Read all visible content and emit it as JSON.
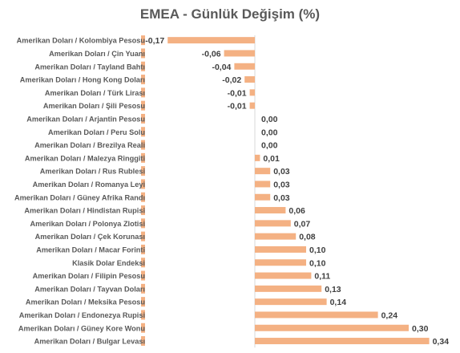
{
  "chart_data": {
    "type": "bar",
    "orientation": "horizontal",
    "title": "EMEA - Günlük Değişim (%)",
    "xlabel": "",
    "ylabel": "",
    "grid": false,
    "legend": "none",
    "xlim": [
      -0.17,
      0.34
    ],
    "bar_color": "#F4B183",
    "category_label_background": "#F4B183",
    "text_color": "#595959",
    "categories": [
      "Amerikan Doları / Kolombiya Pesosu",
      "Amerikan Doları / Çin Yuanı",
      "Amerikan Doları / Tayland Bahtı",
      "Amerikan Doları / Hong Kong Doları",
      "Amerikan Doları / Türk Lirası",
      "Amerikan Doları / Şili Pesosu",
      "Amerikan Doları / Arjantin Pesosu",
      "Amerikan Doları / Peru Solu",
      "Amerikan Doları / Brezilya Reali",
      "Amerikan Doları / Malezya Ringgiti",
      "Amerikan Doları / Rus Rublesi",
      "Amerikan Doları / Romanya Leyi",
      "Amerikan Doları / Güney Afrika Randı",
      "Amerikan Doları / Hindistan Rupisi",
      "Amerikan Doları / Polonya Zlotisi",
      "Amerikan Doları / Çek Korunası",
      "Amerikan Doları / Macar Forinti",
      "Klasik Dolar Endeksi",
      "Amerikan Doları / Filipin Pesosu",
      "Amerikan Doları / Tayvan Doları",
      "Amerikan Doları / Meksika Pesosu",
      "Amerikan Doları / Endonezya Rupisi",
      "Amerikan Doları / Güney Kore Wonu",
      "Amerikan Doları / Bulgar Levası"
    ],
    "values": [
      -0.17,
      -0.06,
      -0.04,
      -0.02,
      -0.01,
      -0.01,
      0.0,
      0.0,
      0.0,
      0.01,
      0.03,
      0.03,
      0.03,
      0.06,
      0.07,
      0.08,
      0.1,
      0.1,
      0.11,
      0.13,
      0.14,
      0.24,
      0.3,
      0.34
    ],
    "value_labels": [
      "-0,17",
      "-0,06",
      "-0,04",
      "-0,02",
      "-0,01",
      "-0,01",
      "0,00",
      "0,00",
      "0,00",
      "0,01",
      "0,03",
      "0,03",
      "0,03",
      "0,06",
      "0,07",
      "0,08",
      "0,10",
      "0,10",
      "0,11",
      "0,13",
      "0,14",
      "0,24",
      "0,30",
      "0,34"
    ]
  }
}
